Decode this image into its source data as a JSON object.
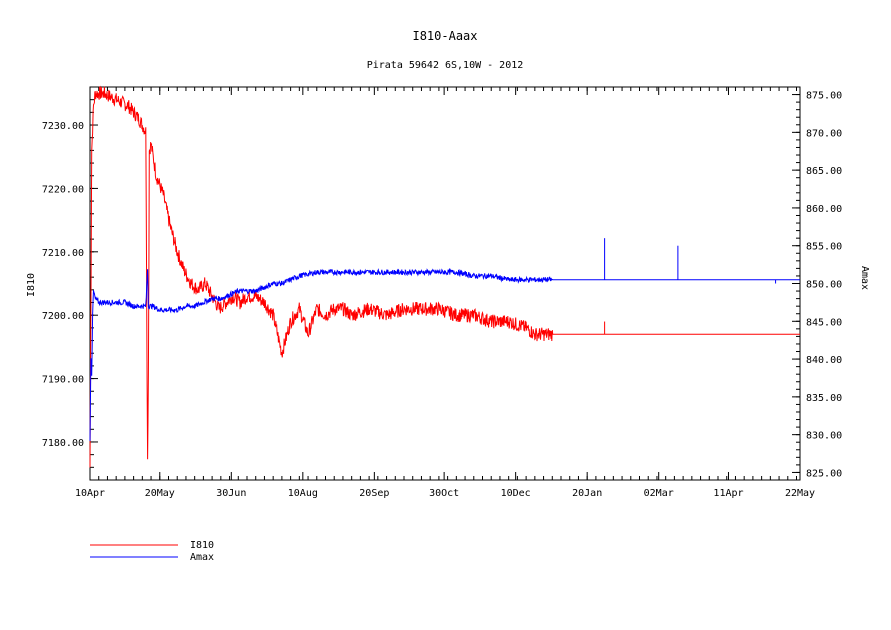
{
  "chart_data": {
    "type": "line",
    "title": "I810-Aaax",
    "subtitle": "Pirata 59642 6S,10W - 2012",
    "ylabel": "I810",
    "y2label": "Amax",
    "x_ticks": [
      "10Apr",
      "20May",
      "30Jun",
      "10Aug",
      "20Sep",
      "30Oct",
      "10Dec",
      "20Jan",
      "02Mar",
      "11Apr",
      "22May"
    ],
    "xlim_days": [
      0,
      407
    ],
    "ylim": [
      7174,
      7236
    ],
    "y_ticks": [
      "7180.00",
      "7190.00",
      "7200.00",
      "7210.00",
      "7220.00",
      "7230.00"
    ],
    "y2lim": [
      824,
      876
    ],
    "y2_ticks": [
      "825.00",
      "830.00",
      "835.00",
      "840.00",
      "845.00",
      "850.00",
      "855.00",
      "860.00",
      "865.00",
      "870.00",
      "875.00"
    ],
    "grid": false,
    "legend_position": "bottom-left",
    "series": [
      {
        "name": "I810",
        "axis": "left",
        "color": "#ff0000",
        "x": [
          0,
          1,
          2,
          3,
          8,
          15,
          22,
          28,
          32,
          33,
          33.5,
          34,
          35,
          38,
          42,
          46,
          50,
          54,
          58,
          62,
          66,
          70,
          74,
          78,
          82,
          86,
          90,
          95,
          100,
          105,
          110,
          115,
          120,
          125,
          130,
          135,
          140,
          145,
          150,
          160,
          170,
          180,
          190,
          200,
          210,
          220,
          230,
          240,
          250,
          255,
          260,
          265,
          407
        ],
        "y": [
          7176,
          7226,
          7233,
          7235,
          7235,
          7234,
          7233,
          7231,
          7229,
          7177,
          7191,
          7226,
          7227,
          7222,
          7219,
          7214,
          7210,
          7207,
          7205,
          7204,
          7205,
          7203,
          7201,
          7202,
          7203,
          7202,
          7203,
          7203,
          7202,
          7200,
          7194,
          7199,
          7201,
          7197,
          7201,
          7200,
          7201,
          7201,
          7200,
          7201,
          7200,
          7201,
          7201,
          7201,
          7200,
          7200,
          7199,
          7199,
          7198,
          7197,
          7197,
          7197,
          7197
        ]
      },
      {
        "name": "Amax",
        "axis": "right",
        "color": "#0000ff",
        "x": [
          0,
          0.5,
          1,
          1.5,
          2,
          3,
          5,
          10,
          15,
          20,
          25,
          30,
          32,
          33,
          33.5,
          34,
          36,
          40,
          45,
          50,
          55,
          60,
          65,
          70,
          75,
          80,
          85,
          90,
          95,
          100,
          105,
          110,
          115,
          120,
          130,
          140,
          150,
          160,
          170,
          180,
          190,
          200,
          210,
          220,
          230,
          240,
          250,
          255,
          260,
          265,
          407
        ],
        "y": [
          829,
          840,
          838,
          846,
          849,
          848,
          847.5,
          847.5,
          847.5,
          847.5,
          847,
          847,
          847,
          852,
          847,
          847,
          847,
          846.5,
          846.5,
          846.5,
          847,
          847,
          847.5,
          848,
          848,
          848.5,
          849,
          849,
          849,
          849.5,
          850,
          850,
          850.5,
          851,
          851.5,
          851.5,
          851.5,
          851.5,
          851.5,
          851.5,
          851.5,
          851.5,
          851.5,
          851,
          851,
          850.5,
          850.5,
          850.5,
          850.5,
          850.5,
          850.5
        ]
      }
    ],
    "spikes": [
      {
        "series": "I810",
        "x": 295,
        "y0": 7197,
        "y1": 7199
      },
      {
        "series": "Amax",
        "x": 295,
        "y0": 850.5,
        "y1": 856
      },
      {
        "series": "Amax",
        "x": 337,
        "y0": 850.5,
        "y1": 855
      },
      {
        "series": "Amax",
        "x": 393,
        "y0": 850.5,
        "y1": 850
      }
    ]
  }
}
